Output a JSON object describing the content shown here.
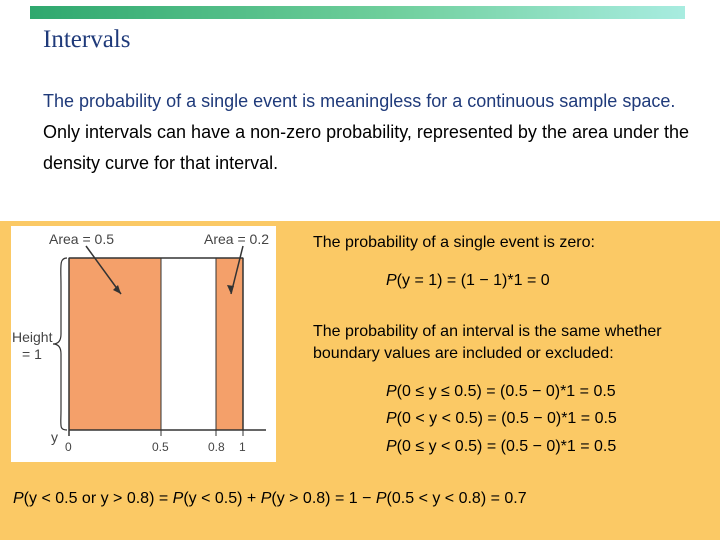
{
  "slide": {
    "title": "Intervals",
    "intro_emph": "The probability of a single event is meaningless for a continuous sample space.",
    "intro_rest": " Only intervals can have a non-zero probability, represented by the area under the density curve for that interval."
  },
  "figure": {
    "area_left_label": "Area = 0.5",
    "area_right_label": "Area = 0.2",
    "height_label_1": "Height",
    "height_label_2": "= 1",
    "y_label": "y",
    "ticks": [
      "0",
      "0.5",
      "0.8",
      "1"
    ]
  },
  "text": {
    "single_event_heading": "The probability of a single event is zero:",
    "single_event_eq": "(y = 1) = (1 − 1)*1 = 0",
    "interval_heading": "The probability of an interval is the same whether boundary values are included or excluded:",
    "eq1": "(0 ≤ y ≤ 0.5) = (0.5 − 0)*1 = 0.5",
    "eq2": "(0 < y < 0.5) = (0.5 − 0)*1 = 0.5",
    "eq3": "(0 ≤ y < 0.5) = (0.5 − 0)*1 = 0.5",
    "bottom_p1": "(y < 0.5 or y > 0.8) =",
    "bottom_p2": "(y < 0.5) +",
    "bottom_p3": "(y > 0.8) = 1 −",
    "bottom_p4": "(0.5 < y < 0.8) = 0.7",
    "p": "P"
  },
  "colors": {
    "panel": "#fbc965",
    "shaded_area": "#f4a06a",
    "title": "#1f3a7a",
    "accent_bar": "#2fa86e"
  }
}
